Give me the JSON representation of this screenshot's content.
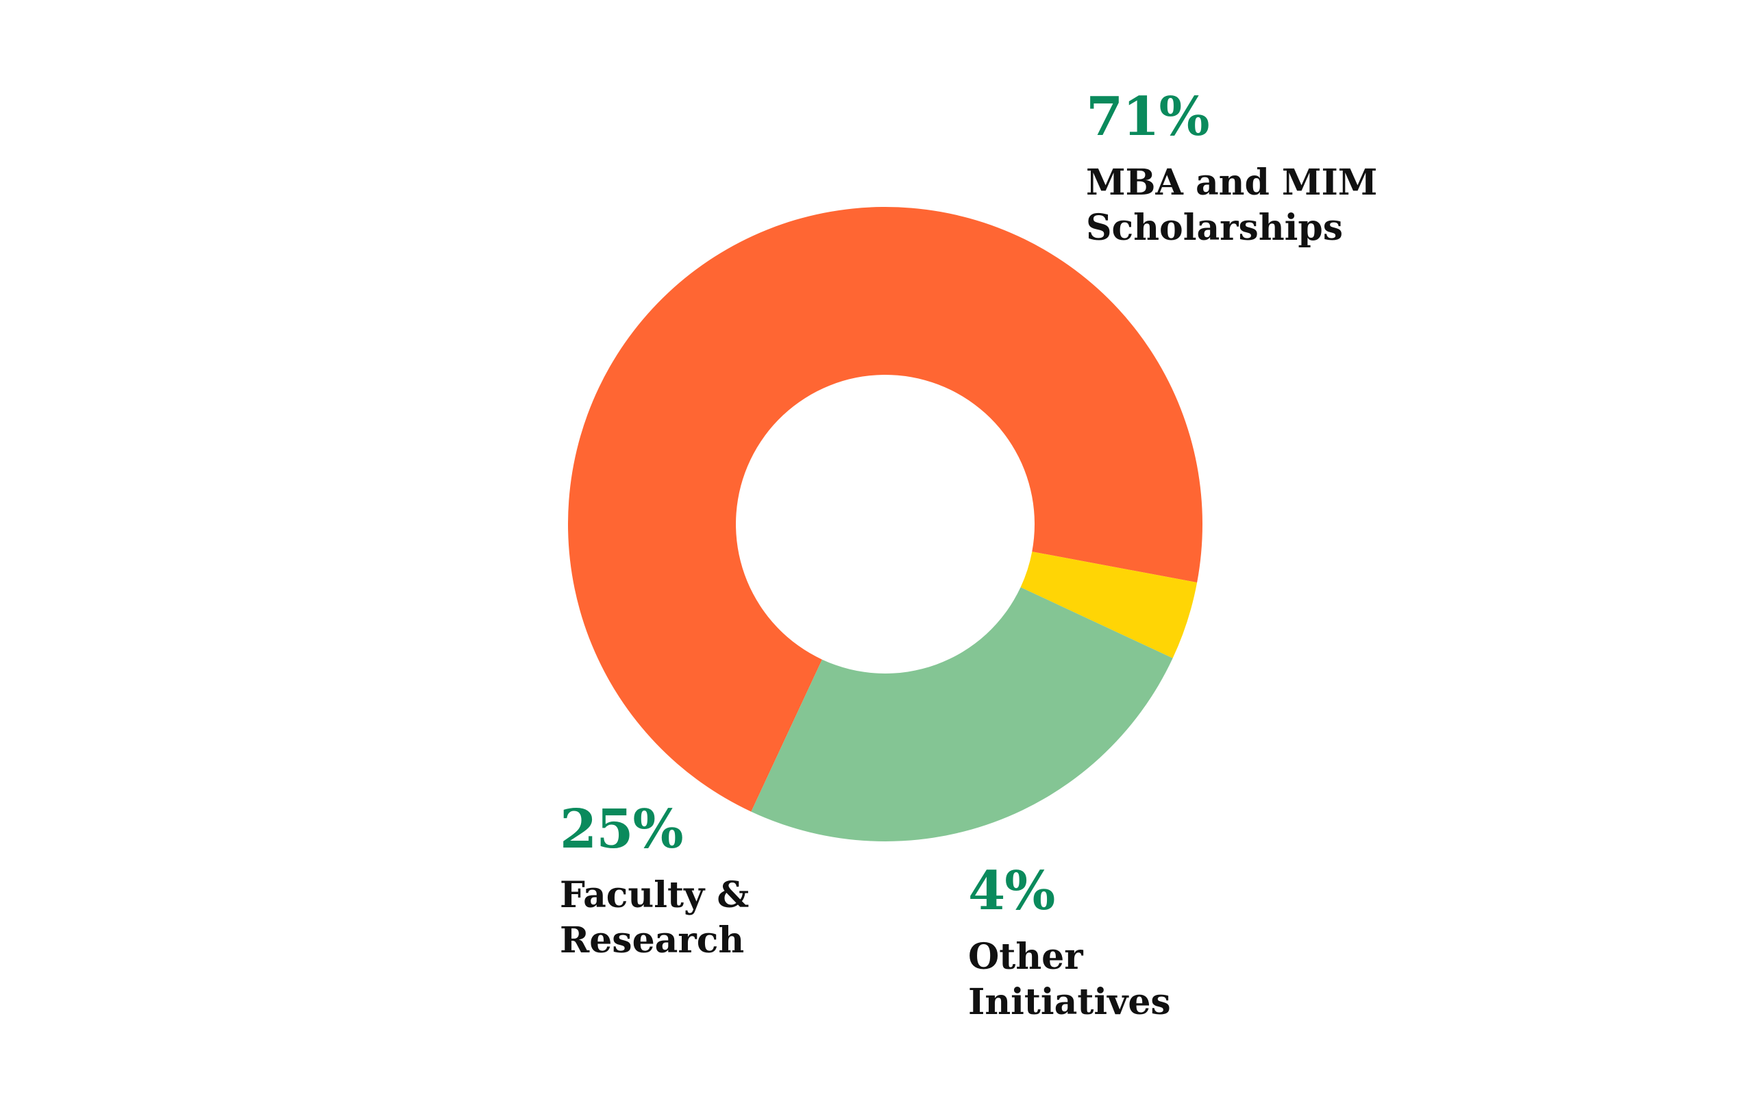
{
  "chart_data": {
    "type": "pie",
    "donut": true,
    "title": "",
    "slices": [
      {
        "label_lines": [
          "MBA and MIM",
          "Scholarships"
        ],
        "value": 71,
        "value_label": "71%",
        "color": "#FF6633"
      },
      {
        "label_lines": [
          "Other",
          "Initiatives"
        ],
        "value": 4,
        "value_label": "4%",
        "color": "#FFD505"
      },
      {
        "label_lines": [
          "Faculty &",
          "Research"
        ],
        "value": 25,
        "value_label": "25%",
        "color": "#84C594"
      }
    ],
    "start_angle_deg": 205,
    "direction": "clockwise",
    "legend": "none"
  },
  "colors": {
    "percent_text": "#0A8A5C",
    "label_text": "#111111",
    "background": "#FFFFFF"
  }
}
